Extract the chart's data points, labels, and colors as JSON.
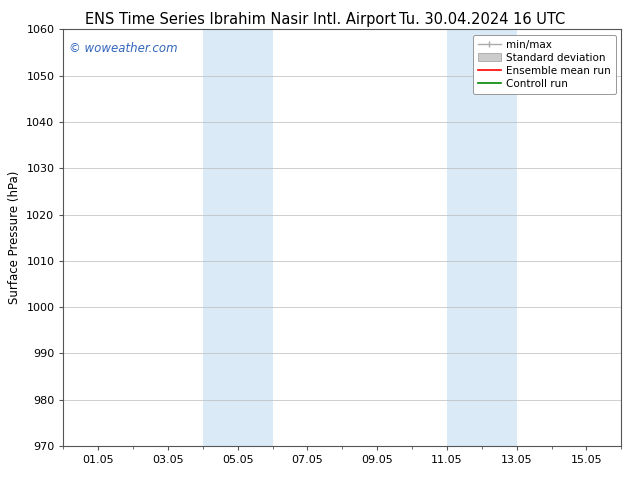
{
  "title_left": "ENS Time Series Ibrahim Nasir Intl. Airport",
  "title_right": "Tu. 30.04.2024 16 UTC",
  "ylabel": "Surface Pressure (hPa)",
  "ylim": [
    970,
    1060
  ],
  "yticks": [
    970,
    980,
    990,
    1000,
    1010,
    1020,
    1030,
    1040,
    1050,
    1060
  ],
  "xtick_labels": [
    "01.05",
    "03.05",
    "05.05",
    "07.05",
    "09.05",
    "11.05",
    "13.05",
    "15.05"
  ],
  "xtick_positions": [
    1,
    3,
    5,
    7,
    9,
    11,
    13,
    15
  ],
  "xlim": [
    0,
    16
  ],
  "shaded_bands": [
    {
      "x_start": 4.0,
      "x_end": 6.0,
      "color": "#daeaf7"
    },
    {
      "x_start": 11.0,
      "x_end": 13.0,
      "color": "#daeaf7"
    }
  ],
  "watermark": "© woweather.com",
  "watermark_color": "#3366bb",
  "legend_labels": [
    "min/max",
    "Standard deviation",
    "Ensemble mean run",
    "Controll run"
  ],
  "legend_colors": [
    "#aaaaaa",
    "#cccccc",
    "#ff0000",
    "#008800"
  ],
  "bg_color": "#ffffff",
  "plot_bg_color": "#ffffff",
  "grid_color": "#bbbbbb",
  "border_color": "#555555",
  "title_fontsize": 10.5,
  "label_fontsize": 8.5,
  "tick_fontsize": 8,
  "legend_fontsize": 7.5
}
